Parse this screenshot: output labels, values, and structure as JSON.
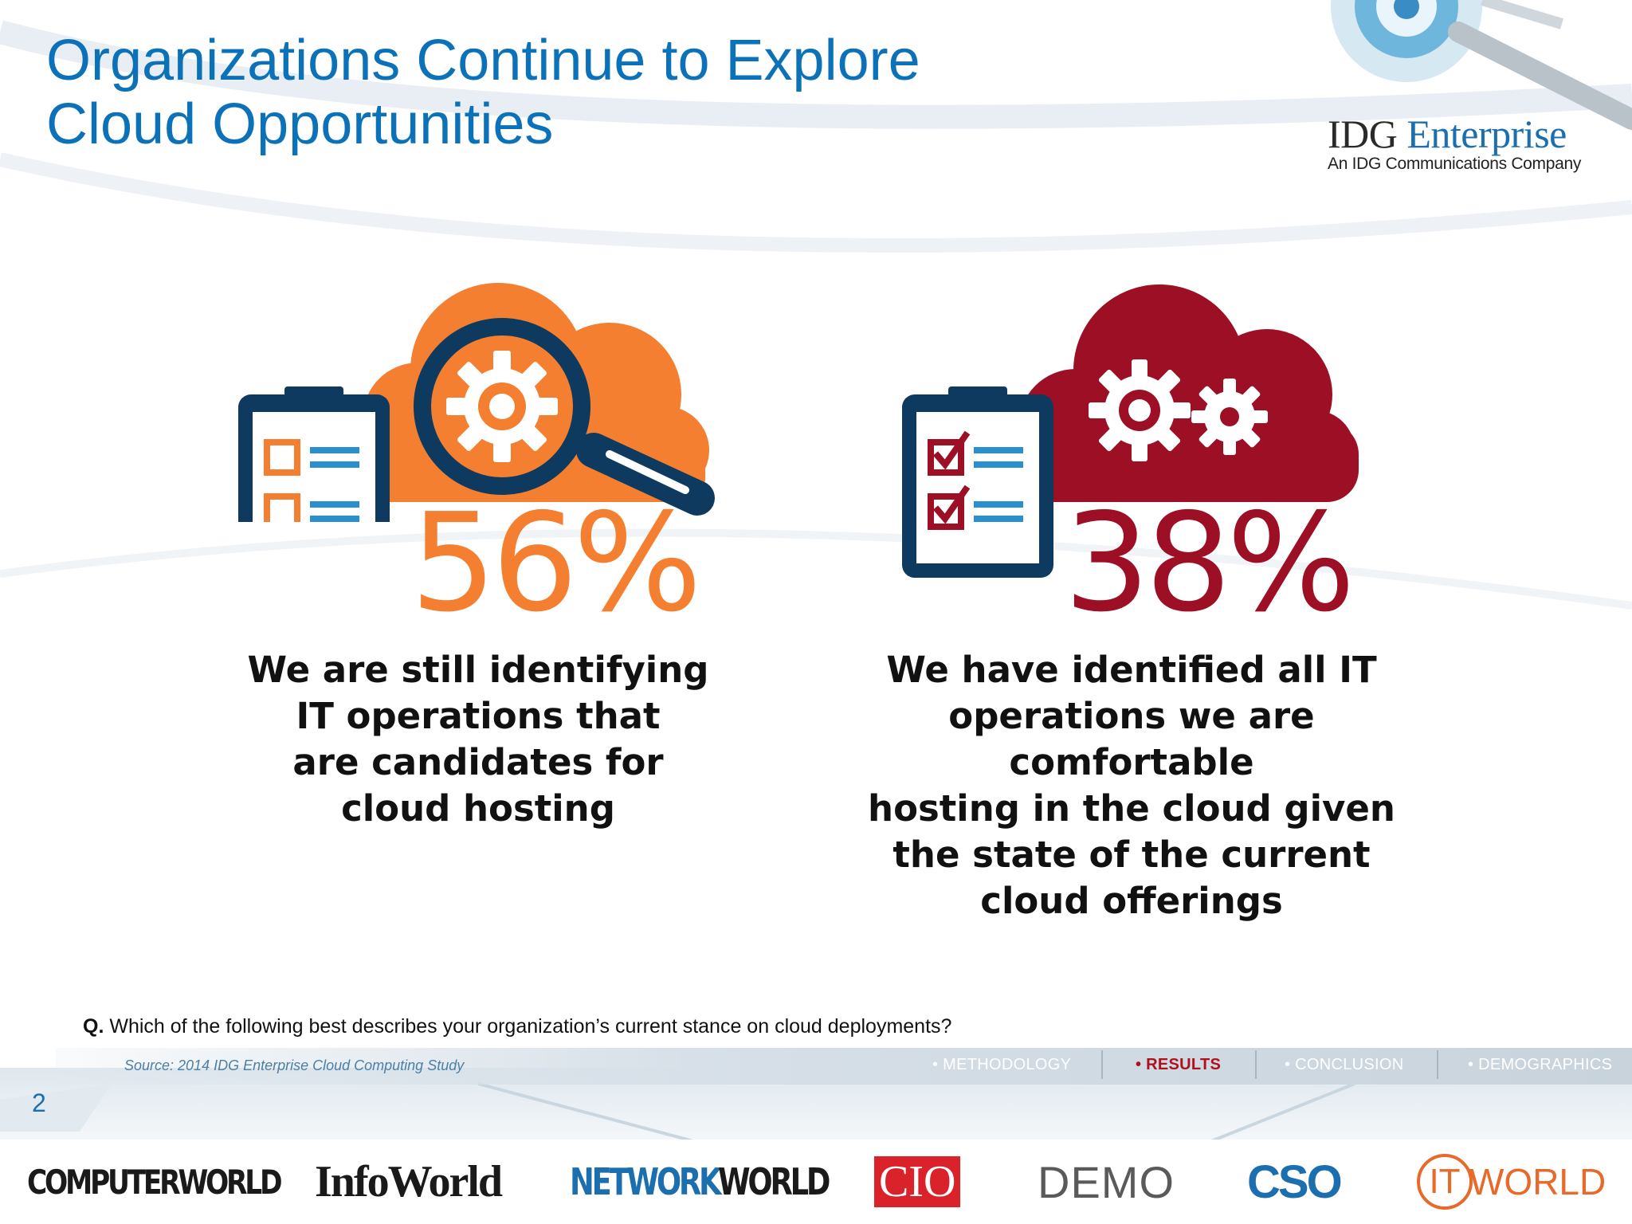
{
  "slide": {
    "title_lines": [
      "Organizations Continue to Explore",
      "Cloud Opportunities"
    ],
    "page_number": "2"
  },
  "brand": {
    "name_part1": "IDG",
    "name_part2": "Enterprise",
    "tagline": "An IDG Communications Company"
  },
  "stats": [
    {
      "value": "56%",
      "description": "We are still identifying\nIT operations that\nare candidates for\ncloud hosting",
      "color": "#f47f30",
      "icon": "clipboard-cloud-magnifier-gear-icon"
    },
    {
      "value": "38%",
      "description": "We have identified all IT\noperations we are comfortable\nhosting in the cloud given\nthe state of the current\ncloud offerings",
      "color": "#9c0f24",
      "icon": "clipboard-checked-cloud-gears-icon"
    }
  ],
  "question": {
    "prefix": "Q.",
    "text": "Which of the following best describes your organization’s current stance on cloud deployments?"
  },
  "footer": {
    "source": "Source: 2014 IDG Enterprise Cloud Computing Study",
    "nav": [
      {
        "label": "• METHODOLOGY",
        "active": false
      },
      {
        "label": "• RESULTS",
        "active": true
      },
      {
        "label": "• CONCLUSION",
        "active": false
      },
      {
        "label": "• DEMOGRAPHICS",
        "active": false
      }
    ]
  },
  "publications": [
    "COMPUTERWORLD",
    "InfoWorld",
    "NETWORK",
    "WORLD",
    "CIO",
    "DEMO",
    "CSO",
    "IT",
    "WORLD"
  ],
  "colors": {
    "title_blue": "#0b72b9",
    "orange": "#f47f30",
    "crimson": "#9c0f24",
    "navy": "#0f3a5f",
    "light_blue": "#2a8fd0"
  }
}
